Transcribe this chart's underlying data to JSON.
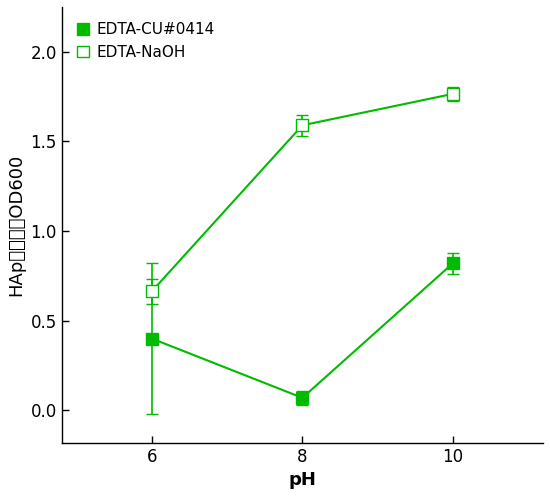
{
  "title": "",
  "xlabel": "pH",
  "ylabel": "HAp懸濁液のOD600",
  "x_ticks": [
    6,
    8,
    10
  ],
  "xlim": [
    4.8,
    11.2
  ],
  "ylim": [
    -0.18,
    2.25
  ],
  "yticks": [
    0.0,
    0.5,
    1.0,
    1.5,
    2.0
  ],
  "ytick_labels": [
    "0.0",
    "0.5",
    "1.0",
    "1.5",
    "2.0"
  ],
  "series1_label": "EDTA-CU#0414",
  "series1_x": [
    6,
    8,
    10
  ],
  "series1_y": [
    0.4,
    0.07,
    0.82
  ],
  "series1_yerr": [
    0.42,
    0.04,
    0.06
  ],
  "series1_color": "#00BB00",
  "series1_markerfacecolor": "#00BB00",
  "series1_markersize": 9,
  "series2_label": "EDTA-NaOH",
  "series2_x": [
    6,
    8,
    10
  ],
  "series2_y": [
    0.665,
    1.59,
    1.765
  ],
  "series2_yerr": [
    0.07,
    0.06,
    0.04
  ],
  "series2_color": "#00BB00",
  "series2_markerfacecolor": "white",
  "series2_markersize": 9,
  "line_width": 1.5,
  "capsize": 4,
  "elinewidth": 1.2,
  "legend_fontsize": 11,
  "axis_label_fontsize": 13,
  "tick_fontsize": 12,
  "background_color": "white",
  "figure_size": [
    5.5,
    4.96
  ],
  "dpi": 100
}
